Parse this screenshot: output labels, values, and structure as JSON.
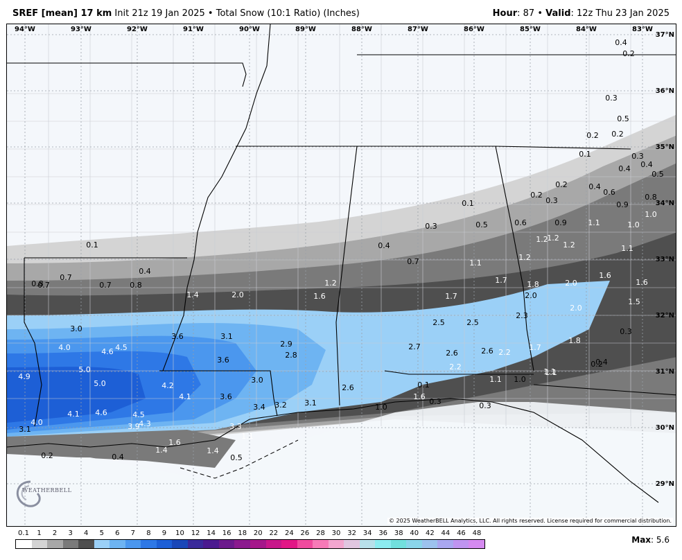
{
  "header": {
    "model": "SREF [mean] 17 km",
    "init": "Init 21z 19 Jan 2025",
    "sep": "•",
    "product": "Total Snow (10:1 Ratio) (Inches)",
    "hour_label": "Hour",
    "hour_value": ": 87",
    "valid_label": "Valid",
    "valid_value": ": 12z Thu 23 Jan 2025"
  },
  "map": {
    "lon_labels": [
      "94°W",
      "93°W",
      "92°W",
      "91°W",
      "90°W",
      "89°W",
      "88°W",
      "87°W",
      "86°W",
      "85°W",
      "84°W",
      "83°W"
    ],
    "lat_labels": [
      "37°N",
      "36°N",
      "35°N",
      "34°N",
      "33°N",
      "32°N",
      "31°N",
      "30°N",
      "29°N"
    ],
    "snow_labels": [
      {
        "t": "0.4",
        "c": "#000"
      },
      {
        "t": "0.2",
        "c": "#000"
      },
      {
        "t": "0.3",
        "c": "#000"
      },
      {
        "t": "0.5",
        "c": "#000"
      },
      {
        "t": "0.2",
        "c": "#000"
      },
      {
        "t": "0.2",
        "c": "#000"
      },
      {
        "t": "0.1",
        "c": "#000"
      },
      {
        "t": "0.3",
        "c": "#000"
      },
      {
        "t": "0.4",
        "c": "#000"
      },
      {
        "t": "0.4",
        "c": "#000"
      },
      {
        "t": "0.5",
        "c": "#000"
      },
      {
        "t": "0.2",
        "c": "#000"
      },
      {
        "t": "0.4",
        "c": "#000"
      },
      {
        "t": "0.6",
        "c": "#000"
      },
      {
        "t": "0.2",
        "c": "#000"
      },
      {
        "t": "0.3",
        "c": "#000"
      },
      {
        "t": "0.8",
        "c": "#000"
      },
      {
        "t": "0.9",
        "c": "#000"
      },
      {
        "t": "0.1",
        "c": "#000"
      },
      {
        "t": "1.0",
        "c": "#fff"
      },
      {
        "t": "0.3",
        "c": "#000"
      },
      {
        "t": "0.5",
        "c": "#000"
      },
      {
        "t": "0.6",
        "c": "#000"
      },
      {
        "t": "0.9",
        "c": "#000"
      },
      {
        "t": "1.1",
        "c": "#fff"
      },
      {
        "t": "1.0",
        "c": "#fff"
      },
      {
        "t": "0.1",
        "c": "#000"
      },
      {
        "t": "0.4",
        "c": "#000"
      },
      {
        "t": "1.2",
        "c": "#fff"
      },
      {
        "t": "1.2",
        "c": "#fff"
      },
      {
        "t": "1.2",
        "c": "#fff"
      },
      {
        "t": "1.1",
        "c": "#fff"
      },
      {
        "t": "0.7",
        "c": "#000"
      },
      {
        "t": "1.2",
        "c": "#fff"
      },
      {
        "t": "1.1",
        "c": "#fff"
      },
      {
        "t": "0.4",
        "c": "#000"
      },
      {
        "t": "0.7",
        "c": "#000"
      },
      {
        "t": "0.8",
        "c": "#000"
      },
      {
        "t": "0.7",
        "c": "#000"
      },
      {
        "t": "0.7",
        "c": "#000"
      },
      {
        "t": "0.8",
        "c": "#000"
      },
      {
        "t": "1.7",
        "c": "#fff"
      },
      {
        "t": "1.6",
        "c": "#fff"
      },
      {
        "t": "1.8",
        "c": "#fff"
      },
      {
        "t": "2.0",
        "c": "#fff"
      },
      {
        "t": "1.6",
        "c": "#fff"
      },
      {
        "t": "1.2",
        "c": "#fff"
      },
      {
        "t": "1.4",
        "c": "#fff"
      },
      {
        "t": "2.0",
        "c": "#fff"
      },
      {
        "t": "1.6",
        "c": "#fff"
      },
      {
        "t": "1.7",
        "c": "#fff"
      },
      {
        "t": "2.0",
        "c": "#fff"
      },
      {
        "t": "2.0",
        "c": "#000"
      },
      {
        "t": "1.5",
        "c": "#fff"
      },
      {
        "t": "2.3",
        "c": "#000"
      },
      {
        "t": "2.5",
        "c": "#000"
      },
      {
        "t": "2.5",
        "c": "#000"
      },
      {
        "t": "3.0",
        "c": "#000"
      },
      {
        "t": "0.3",
        "c": "#000"
      },
      {
        "t": "4.0",
        "c": "#fff"
      },
      {
        "t": "4.6",
        "c": "#fff"
      },
      {
        "t": "4.5",
        "c": "#fff"
      },
      {
        "t": "3.6",
        "c": "#000"
      },
      {
        "t": "3.1",
        "c": "#000"
      },
      {
        "t": "2.9",
        "c": "#000"
      },
      {
        "t": "2.8",
        "c": "#000"
      },
      {
        "t": "2.7",
        "c": "#000"
      },
      {
        "t": "2.6",
        "c": "#000"
      },
      {
        "t": "2.6",
        "c": "#000"
      },
      {
        "t": "2.2",
        "c": "#fff"
      },
      {
        "t": "1.7",
        "c": "#fff"
      },
      {
        "t": "1.8",
        "c": "#fff"
      },
      {
        "t": "0.2",
        "c": "#000"
      },
      {
        "t": "0.4",
        "c": "#000"
      },
      {
        "t": "5.0",
        "c": "#fff"
      },
      {
        "t": "3.6",
        "c": "#000"
      },
      {
        "t": "4.9",
        "c": "#fff"
      },
      {
        "t": "5.0",
        "c": "#fff"
      },
      {
        "t": "4.2",
        "c": "#fff"
      },
      {
        "t": "4.1",
        "c": "#fff"
      },
      {
        "t": "3.0",
        "c": "#000"
      },
      {
        "t": "2.2",
        "c": "#fff"
      },
      {
        "t": "1.1",
        "c": "#fff"
      },
      {
        "t": "1.0",
        "c": "#000"
      },
      {
        "t": "1.1",
        "c": "#fff"
      },
      {
        "t": "2.6",
        "c": "#000"
      },
      {
        "t": "3.6",
        "c": "#000"
      },
      {
        "t": "3.4",
        "c": "#000"
      },
      {
        "t": "3.2",
        "c": "#000"
      },
      {
        "t": "3.1",
        "c": "#000"
      },
      {
        "t": "4.1",
        "c": "#fff"
      },
      {
        "t": "4.6",
        "c": "#fff"
      },
      {
        "t": "4.5",
        "c": "#fff"
      },
      {
        "t": "1.6",
        "c": "#fff"
      },
      {
        "t": "1.0",
        "c": "#000"
      },
      {
        "t": "0.3",
        "c": "#000"
      },
      {
        "t": "0.3",
        "c": "#000"
      },
      {
        "t": "4.0",
        "c": "#fff"
      },
      {
        "t": "3.9",
        "c": "#fff"
      },
      {
        "t": "4.3",
        "c": "#fff"
      },
      {
        "t": "3.1",
        "c": "#000"
      },
      {
        "t": "3.3",
        "c": "#fff"
      },
      {
        "t": "1.1",
        "c": "#fff"
      },
      {
        "t": "1.6",
        "c": "#fff"
      },
      {
        "t": "1.4",
        "c": "#fff"
      },
      {
        "t": "1.4",
        "c": "#fff"
      },
      {
        "t": "0.5",
        "c": "#000"
      },
      {
        "t": "0.2",
        "c": "#000"
      },
      {
        "t": "0.4",
        "c": "#000"
      },
      {
        "t": "0.1",
        "c": "#000"
      },
      {
        "t": "1.1",
        "c": "#fff"
      }
    ],
    "logo_text": "WEATHERBELL",
    "copyright": "© 2025 WeatherBELL Analytics, LLC. All rights reserved. License required for commercial distribution."
  },
  "legend": {
    "ticks": [
      "0.1",
      "1",
      "2",
      "3",
      "4",
      "5",
      "6",
      "7",
      "8",
      "9",
      "10",
      "12",
      "14",
      "16",
      "18",
      "20",
      "22",
      "24",
      "26",
      "28",
      "30",
      "32",
      "34",
      "36",
      "38",
      "40",
      "42",
      "44",
      "46",
      "48"
    ],
    "colors": [
      "#ffffff",
      "#d4d4d4",
      "#a8a8a8",
      "#7a7a7a",
      "#4f4f4f",
      "#9bd0f7",
      "#6eb4f2",
      "#4b97ee",
      "#2e78e6",
      "#1d5fd6",
      "#1a47b8",
      "#3a2a9a",
      "#4b1a8f",
      "#6c1a8c",
      "#8b1a8e",
      "#a5178a",
      "#c8178a",
      "#e21686",
      "#f04a9e",
      "#f77ab7",
      "#f3a6cf",
      "#e0c6e0",
      "#b8e0ea",
      "#8cecf0",
      "#72e0dd",
      "#8ad5ea",
      "#9cc2ee",
      "#a9a7f0",
      "#bf94f0",
      "#d58af0"
    ],
    "max_label": "Max",
    "max_value": ": 5.6"
  }
}
